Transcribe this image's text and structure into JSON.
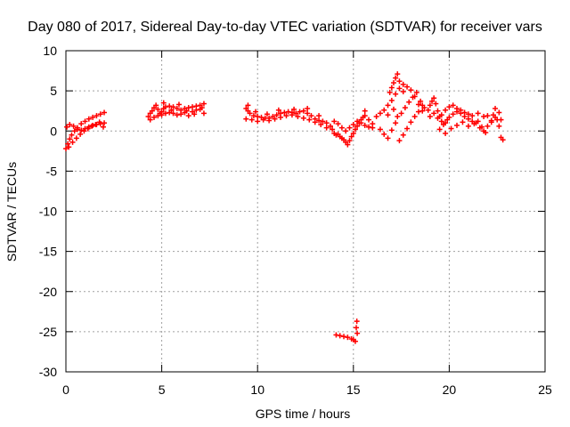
{
  "chart_data": {
    "type": "scatter",
    "title": "Day 080 of 2017, Sidereal Day-to-day VTEC variation (SDTVAR) for receiver vars",
    "xlabel": "GPS time / hours",
    "ylabel": "SDTVAR / TECUs",
    "xlim": [
      0,
      25
    ],
    "ylim": [
      -30,
      10
    ],
    "x_ticks": [
      0,
      5,
      10,
      15,
      20,
      25
    ],
    "y_ticks": [
      10,
      5,
      0,
      -5,
      -10,
      -15,
      -20,
      -25,
      -30
    ],
    "x_tick_labels": [
      "0",
      "5",
      "10",
      "15",
      "20",
      "25"
    ],
    "y_tick_labels": [
      "10",
      "5",
      "0",
      "-5",
      "-10",
      "-15",
      "-20",
      "-25",
      "-30"
    ],
    "grid": true,
    "marker": "+",
    "colors": {
      "series": "#ff0000",
      "grid": "#a0a0a0",
      "axis": "#000000"
    },
    "series": [
      {
        "name": "SDTVAR",
        "points": [
          [
            0.0,
            -2.2
          ],
          [
            0.1,
            -1.6
          ],
          [
            0.2,
            -1.0
          ],
          [
            0.3,
            -0.5
          ],
          [
            0.45,
            0.0
          ],
          [
            0.6,
            0.4
          ],
          [
            0.8,
            0.9
          ],
          [
            1.0,
            1.2
          ],
          [
            1.2,
            1.5
          ],
          [
            1.4,
            1.7
          ],
          [
            1.6,
            1.9
          ],
          [
            1.8,
            2.1
          ],
          [
            2.0,
            2.3
          ],
          [
            0.05,
            0.5
          ],
          [
            0.2,
            0.8
          ],
          [
            0.4,
            0.6
          ],
          [
            0.6,
            0.2
          ],
          [
            0.8,
            0.1
          ],
          [
            1.0,
            0.3
          ],
          [
            1.2,
            0.5
          ],
          [
            1.4,
            0.7
          ],
          [
            1.6,
            0.8
          ],
          [
            1.8,
            0.9
          ],
          [
            2.0,
            1.0
          ],
          [
            0.15,
            -2.0
          ],
          [
            0.35,
            -1.4
          ],
          [
            0.55,
            -0.9
          ],
          [
            0.75,
            -0.4
          ],
          [
            0.95,
            0.0
          ],
          [
            1.15,
            0.3
          ],
          [
            1.35,
            0.6
          ],
          [
            1.55,
            0.8
          ],
          [
            1.75,
            1.1
          ],
          [
            1.95,
            0.5
          ],
          [
            4.3,
            1.8
          ],
          [
            4.4,
            2.2
          ],
          [
            4.5,
            2.5
          ],
          [
            4.6,
            2.9
          ],
          [
            4.7,
            3.2
          ],
          [
            4.8,
            2.7
          ],
          [
            4.9,
            2.2
          ],
          [
            5.0,
            2.4
          ],
          [
            5.1,
            2.8
          ],
          [
            5.2,
            3.0
          ],
          [
            5.4,
            3.1
          ],
          [
            5.6,
            3.0
          ],
          [
            5.8,
            2.8
          ],
          [
            6.0,
            2.6
          ],
          [
            6.2,
            2.8
          ],
          [
            6.4,
            2.9
          ],
          [
            6.6,
            3.0
          ],
          [
            6.8,
            3.1
          ],
          [
            7.0,
            3.2
          ],
          [
            7.2,
            3.4
          ],
          [
            4.4,
            1.4
          ],
          [
            4.6,
            1.7
          ],
          [
            4.8,
            1.9
          ],
          [
            5.0,
            2.0
          ],
          [
            5.2,
            2.2
          ],
          [
            5.4,
            2.3
          ],
          [
            5.6,
            2.2
          ],
          [
            5.8,
            2.0
          ],
          [
            6.0,
            2.1
          ],
          [
            6.2,
            2.3
          ],
          [
            6.4,
            1.9
          ],
          [
            6.6,
            2.4
          ],
          [
            6.8,
            2.6
          ],
          [
            7.0,
            2.7
          ],
          [
            7.2,
            2.2
          ],
          [
            5.1,
            3.5
          ],
          [
            5.5,
            2.6
          ],
          [
            5.9,
            3.3
          ],
          [
            6.3,
            2.5
          ],
          [
            6.7,
            2.1
          ],
          [
            7.1,
            2.9
          ],
          [
            9.4,
            2.8
          ],
          [
            9.5,
            2.5
          ],
          [
            9.6,
            2.2
          ],
          [
            9.8,
            1.9
          ],
          [
            10.0,
            1.8
          ],
          [
            10.2,
            1.7
          ],
          [
            10.4,
            1.6
          ],
          [
            10.6,
            1.6
          ],
          [
            10.8,
            1.8
          ],
          [
            11.0,
            2.0
          ],
          [
            11.2,
            2.2
          ],
          [
            11.4,
            2.3
          ],
          [
            11.6,
            2.4
          ],
          [
            11.8,
            2.3
          ],
          [
            12.0,
            2.2
          ],
          [
            12.2,
            2.4
          ],
          [
            12.4,
            2.5
          ],
          [
            12.6,
            2.2
          ],
          [
            12.8,
            1.9
          ],
          [
            13.0,
            1.5
          ],
          [
            13.2,
            1.3
          ],
          [
            13.4,
            1.2
          ],
          [
            13.6,
            1.0
          ],
          [
            13.8,
            0.6
          ],
          [
            9.4,
            1.5
          ],
          [
            9.7,
            1.4
          ],
          [
            10.0,
            1.2
          ],
          [
            10.3,
            1.4
          ],
          [
            10.6,
            1.3
          ],
          [
            10.9,
            1.5
          ],
          [
            11.2,
            1.7
          ],
          [
            11.5,
            1.9
          ],
          [
            11.8,
            2.0
          ],
          [
            12.1,
            1.8
          ],
          [
            12.4,
            1.6
          ],
          [
            12.7,
            1.4
          ],
          [
            13.0,
            1.1
          ],
          [
            13.3,
            0.8
          ],
          [
            13.6,
            0.4
          ],
          [
            9.5,
            3.2
          ],
          [
            9.9,
            2.4
          ],
          [
            10.5,
            2.1
          ],
          [
            11.1,
            2.6
          ],
          [
            11.9,
            2.7
          ],
          [
            12.6,
            2.8
          ],
          [
            13.2,
            1.9
          ],
          [
            13.9,
            0.2
          ],
          [
            14.0,
            -0.3
          ],
          [
            14.1,
            -0.5
          ],
          [
            14.2,
            -0.4
          ],
          [
            14.3,
            -0.7
          ],
          [
            14.4,
            -0.9
          ],
          [
            14.5,
            -1.1
          ],
          [
            14.6,
            -1.4
          ],
          [
            14.7,
            -1.7
          ],
          [
            14.8,
            -1.2
          ],
          [
            14.9,
            -0.7
          ],
          [
            15.0,
            -0.3
          ],
          [
            15.1,
            0.2
          ],
          [
            15.2,
            0.6
          ],
          [
            15.3,
            1.0
          ],
          [
            15.4,
            1.4
          ],
          [
            15.5,
            1.7
          ],
          [
            15.6,
            1.9
          ],
          [
            14.0,
            1.2
          ],
          [
            14.2,
            0.9
          ],
          [
            14.4,
            0.4
          ],
          [
            14.6,
            0.0
          ],
          [
            14.8,
            0.4
          ],
          [
            15.0,
            0.8
          ],
          [
            15.2,
            1.2
          ],
          [
            15.4,
            1.0
          ],
          [
            15.6,
            0.7
          ],
          [
            15.8,
            0.5
          ],
          [
            16.0,
            0.4
          ],
          [
            15.6,
            2.5
          ],
          [
            15.8,
            1.4
          ],
          [
            16.0,
            0.9
          ],
          [
            16.2,
            1.8
          ],
          [
            16.4,
            2.2
          ],
          [
            16.6,
            2.6
          ],
          [
            16.8,
            3.2
          ],
          [
            17.0,
            3.8
          ],
          [
            17.2,
            4.6
          ],
          [
            17.4,
            5.3
          ],
          [
            17.6,
            5.8
          ],
          [
            16.4,
            0.2
          ],
          [
            16.6,
            -0.4
          ],
          [
            16.8,
            -0.9
          ],
          [
            17.0,
            0.1
          ],
          [
            17.2,
            1.0
          ],
          [
            17.4,
            -1.2
          ],
          [
            17.6,
            -0.5
          ],
          [
            17.8,
            0.3
          ],
          [
            18.0,
            1.1
          ],
          [
            18.2,
            1.8
          ],
          [
            18.4,
            2.4
          ],
          [
            18.6,
            3.2
          ],
          [
            16.9,
            4.8
          ],
          [
            17.0,
            5.4
          ],
          [
            17.1,
            6.0
          ],
          [
            17.2,
            6.6
          ],
          [
            17.3,
            7.1
          ],
          [
            17.4,
            6.2
          ],
          [
            17.6,
            4.9
          ],
          [
            17.8,
            5.5
          ],
          [
            18.0,
            5.1
          ],
          [
            18.2,
            4.3
          ],
          [
            18.4,
            3.3
          ],
          [
            18.6,
            2.5
          ],
          [
            16.8,
            2.0
          ],
          [
            17.1,
            2.7
          ],
          [
            17.3,
            1.8
          ],
          [
            17.5,
            2.2
          ],
          [
            17.7,
            2.9
          ],
          [
            17.9,
            3.6
          ],
          [
            18.1,
            4.2
          ],
          [
            18.3,
            4.8
          ],
          [
            18.5,
            3.7
          ],
          [
            18.7,
            2.9
          ],
          [
            18.9,
            2.6
          ],
          [
            19.0,
            3.2
          ],
          [
            19.1,
            3.7
          ],
          [
            19.2,
            4.1
          ],
          [
            19.3,
            3.4
          ],
          [
            19.4,
            2.5
          ],
          [
            19.5,
            1.8
          ],
          [
            19.6,
            1.2
          ],
          [
            19.7,
            0.8
          ],
          [
            19.8,
            1.0
          ],
          [
            19.9,
            1.4
          ],
          [
            20.0,
            1.7
          ],
          [
            20.2,
            2.1
          ],
          [
            20.4,
            2.4
          ],
          [
            20.6,
            2.2
          ],
          [
            20.8,
            1.8
          ],
          [
            21.0,
            1.5
          ],
          [
            21.2,
            1.2
          ],
          [
            19.0,
            1.8
          ],
          [
            19.2,
            2.2
          ],
          [
            19.4,
            1.6
          ],
          [
            19.6,
            2.0
          ],
          [
            19.8,
            2.6
          ],
          [
            20.0,
            3.0
          ],
          [
            20.2,
            3.2
          ],
          [
            20.4,
            2.8
          ],
          [
            20.6,
            2.6
          ],
          [
            20.8,
            2.3
          ],
          [
            21.0,
            2.1
          ],
          [
            21.2,
            1.9
          ],
          [
            19.5,
            0.2
          ],
          [
            19.8,
            -0.3
          ],
          [
            20.1,
            0.3
          ],
          [
            20.4,
            0.7
          ],
          [
            20.7,
            1.1
          ],
          [
            21.0,
            0.6
          ],
          [
            21.3,
            0.9
          ],
          [
            21.5,
            1.2
          ],
          [
            21.7,
            0.5
          ],
          [
            21.9,
            -0.2
          ],
          [
            21.4,
            1.0
          ],
          [
            21.6,
            0.4
          ],
          [
            21.8,
            0.0
          ],
          [
            22.0,
            0.6
          ],
          [
            22.2,
            1.3
          ],
          [
            22.3,
            2.0
          ],
          [
            22.4,
            2.8
          ],
          [
            22.5,
            1.4
          ],
          [
            22.6,
            0.6
          ],
          [
            22.7,
            -0.8
          ],
          [
            22.8,
            -1.1
          ],
          [
            21.5,
            2.2
          ],
          [
            21.8,
            1.8
          ],
          [
            22.0,
            1.9
          ],
          [
            22.2,
            1.1
          ],
          [
            22.4,
            1.7
          ],
          [
            22.6,
            2.3
          ],
          [
            22.7,
            1.4
          ],
          [
            14.1,
            -25.4
          ],
          [
            14.3,
            -25.5
          ],
          [
            14.5,
            -25.6
          ],
          [
            14.7,
            -25.7
          ],
          [
            14.9,
            -25.9
          ],
          [
            15.0,
            -26.0
          ],
          [
            15.1,
            -26.2
          ],
          [
            15.15,
            -24.5
          ],
          [
            15.18,
            -23.7
          ],
          [
            15.2,
            -25.2
          ]
        ]
      }
    ]
  }
}
